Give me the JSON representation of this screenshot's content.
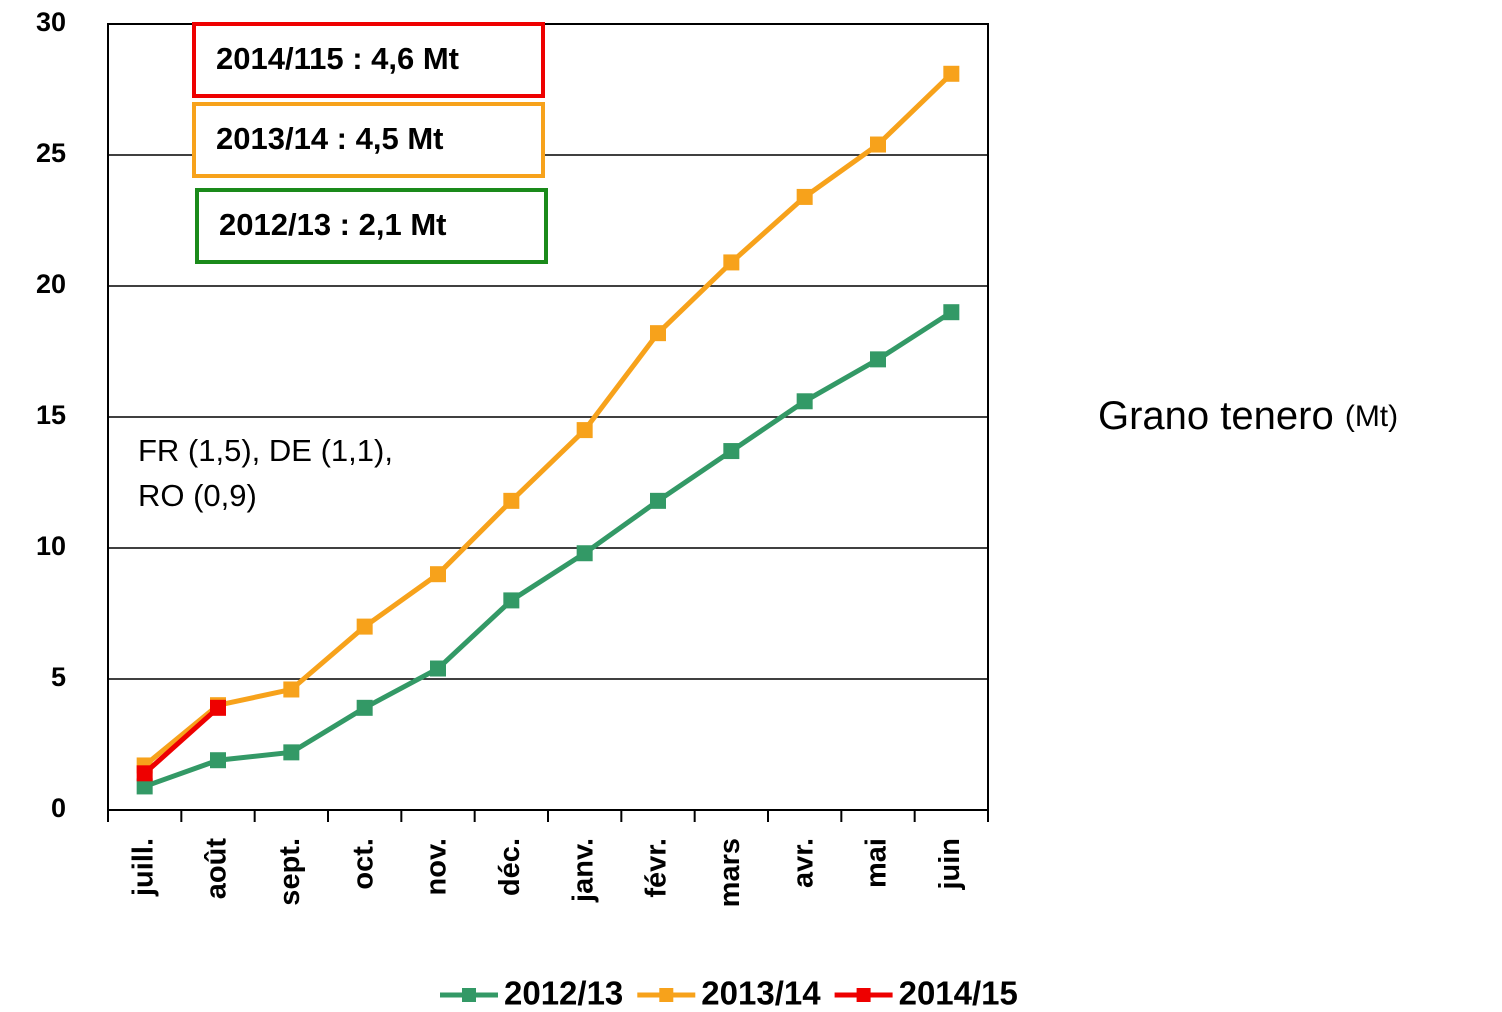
{
  "chart_data": {
    "type": "line",
    "categories": [
      "juill.",
      "août",
      "sept.",
      "oct.",
      "nov.",
      "déc.",
      "janv.",
      "févr.",
      "mars",
      "avr.",
      "mai",
      "juin"
    ],
    "series": [
      {
        "name": "2012/13",
        "color": "#339966",
        "values": [
          0.9,
          1.9,
          2.2,
          3.9,
          5.4,
          8.0,
          9.8,
          11.8,
          13.7,
          15.6,
          17.2,
          19.0
        ]
      },
      {
        "name": "2013/14",
        "color": "#f7a21b",
        "values": [
          1.7,
          4.0,
          4.6,
          7.0,
          9.0,
          11.8,
          14.5,
          18.2,
          20.9,
          23.4,
          25.4,
          28.1
        ]
      },
      {
        "name": "2014/15",
        "color": "#ee0000",
        "values": [
          1.4,
          3.9,
          null,
          null,
          null,
          null,
          null,
          null,
          null,
          null,
          null,
          null
        ]
      }
    ],
    "ylim": [
      0,
      30
    ],
    "yticks": [
      0,
      5,
      10,
      15,
      20,
      25,
      30
    ],
    "grid": true,
    "ylabel": "Grano tenero",
    "yunit": "(Mt)",
    "annotations": [
      {
        "text": "2014/115 : 4,6 Mt",
        "color": "#ee0000"
      },
      {
        "text": "2013/14 : 4,5 Mt",
        "color": "#f7a21b"
      },
      {
        "text": "2012/13 : 2,1 Mt",
        "color": "#1a8a1a"
      }
    ],
    "note": [
      "FR (1,5), DE (1,1),",
      "RO (0,9)"
    ],
    "legend": "bottom"
  }
}
